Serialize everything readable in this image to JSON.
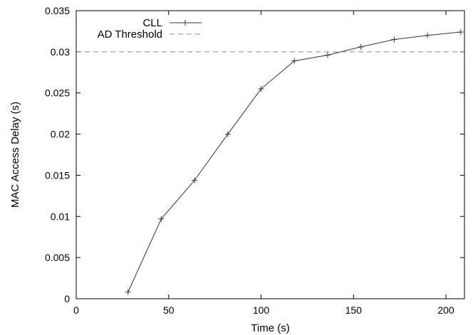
{
  "chart_data": {
    "type": "line",
    "title": "",
    "xlabel": "Time (s)",
    "ylabel": "MAC Access Delay (s)",
    "xlim": [
      0,
      210
    ],
    "ylim": [
      0,
      0.035
    ],
    "x_ticks": [
      0,
      50,
      100,
      150,
      200
    ],
    "x_tick_labels": [
      "0",
      "50",
      "100",
      "150",
      "200"
    ],
    "y_ticks": [
      0,
      0.005,
      0.01,
      0.015,
      0.02,
      0.025,
      0.03,
      0.035
    ],
    "y_tick_labels": [
      "0",
      "0.005",
      "0.01",
      "0.015",
      "0.02",
      "0.025",
      "0.03",
      "0.035"
    ],
    "grid": false,
    "legend_position": "top-left",
    "series": [
      {
        "name": "CLL",
        "style": "solid-line-plus-markers",
        "color": "#333333",
        "x": [
          28,
          46,
          64,
          82,
          100,
          118,
          136,
          154,
          172,
          190,
          208
        ],
        "y": [
          0.0008,
          0.0097,
          0.0144,
          0.02,
          0.0255,
          0.0289,
          0.0296,
          0.0306,
          0.0315,
          0.032,
          0.0324
        ]
      },
      {
        "name": "AD Threshold",
        "style": "dashed-line",
        "color": "#888888",
        "x": [
          0,
          210
        ],
        "y": [
          0.03,
          0.03
        ]
      }
    ]
  }
}
